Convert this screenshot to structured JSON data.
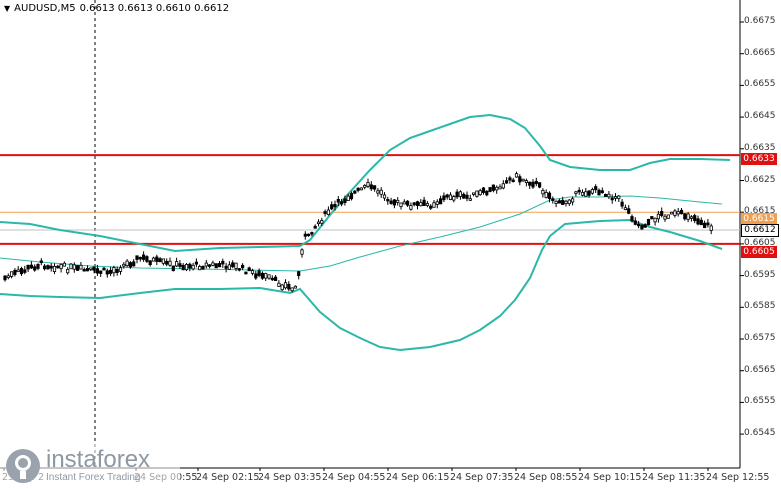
{
  "header": {
    "symbol": "AUDUSD,M5",
    "ohlc": "0.6613 0.6613 0.6610 0.6612"
  },
  "price_axis": {
    "labels": [
      "0.6675",
      "0.6665",
      "0.6655",
      "0.6645",
      "0.6635",
      "0.6625",
      "0.6615",
      "0.6605",
      "0.6595",
      "0.6585",
      "0.6575",
      "0.6565",
      "0.6555",
      "0.6545"
    ]
  },
  "price_tags": {
    "red_top": "0.6633",
    "orange": "0.6615",
    "current": "0.6612",
    "red_bottom": "0.6605"
  },
  "time_axis": {
    "labels": [
      "23 Sep 2",
      "24 Sep 00:55",
      "24 Sep 02:15",
      "24 Sep 03:35",
      "24 Sep 04:55",
      "24 Sep 06:15",
      "24 Sep 07:35",
      "24 Sep 08:55",
      "24 Sep 10:15",
      "24 Sep 11:35",
      "24 Sep 12:55"
    ]
  },
  "watermark": {
    "name": "instaforex",
    "sub": "Instant Forex Trading"
  },
  "colors": {
    "red_level": "#e01010",
    "orange_level": "#f0a050",
    "bands": "#2ab8a8",
    "ma": "#2ab8a8",
    "candles": "#000000"
  },
  "chart_data": {
    "type": "candlestick",
    "horizontal_levels": [
      0.6633,
      0.6615,
      0.6605
    ],
    "ylim": [
      0.654,
      0.668
    ]
  }
}
